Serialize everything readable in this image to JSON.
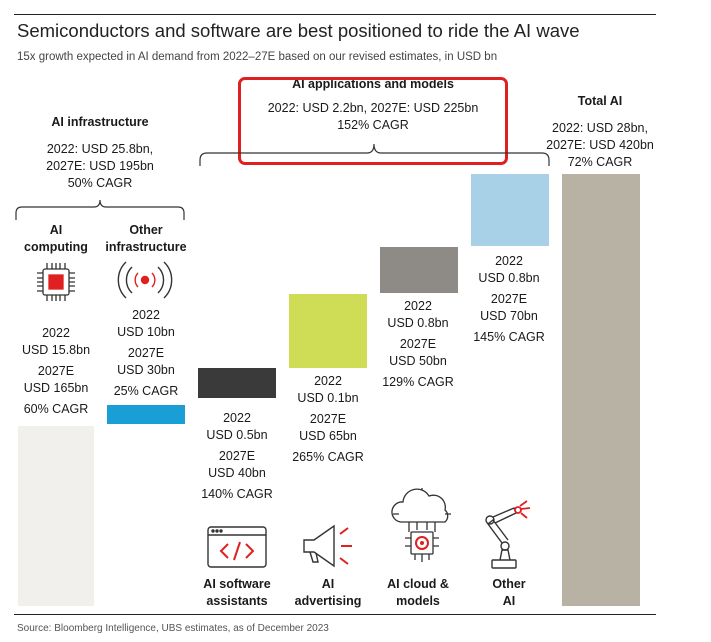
{
  "title": "Semiconductors and software are best positioned to ride the AI wave",
  "subtitle": "15x growth expected in AI demand from 2022–27E based on our revised estimates, in USD bn",
  "source": "Source: Bloomberg Intelligence, UBS estimates, as of December 2023",
  "groups": {
    "infrastructure": {
      "title": "AI infrastructure",
      "line1": "2022: USD 25.8bn,",
      "line2": "2027E: USD 195bn",
      "line3": "50% CAGR"
    },
    "applications": {
      "title": "AI applications and models",
      "line1": "2022: USD 2.2bn, 2027E: USD 225bn",
      "line2": "152% CAGR"
    },
    "total": {
      "title": "Total AI",
      "line1": "2022: USD 28bn,",
      "line2": "2027E: USD 420bn",
      "line3": "72% CAGR"
    }
  },
  "chart_data": {
    "type": "bar",
    "unit": "USD bn",
    "categories": [
      "AI computing",
      "Other infrastructure",
      "AI software assistants",
      "AI advertising",
      "AI cloud & models",
      "Other AI",
      "Total AI"
    ],
    "items": [
      {
        "id": "ai-computing",
        "label1": "AI",
        "label2": "computing",
        "value_2022": 15.8,
        "value_2027": 165,
        "cagr": 60,
        "text_2022": "2022",
        "text_2022_value": "USD 15.8bn",
        "text_2027": "2027E",
        "text_2027_value": "USD 165bn",
        "text_cagr": "60% CAGR",
        "color": "#f1f0ec",
        "icon": "chip-icon"
      },
      {
        "id": "other-infrastructure",
        "label1": "Other",
        "label2": "infrastructure",
        "value_2022": 10,
        "value_2027": 30,
        "cagr": 25,
        "text_2022": "2022",
        "text_2022_value": "USD 10bn",
        "text_2027": "2027E",
        "text_2027_value": "USD 30bn",
        "text_cagr": "25% CAGR",
        "color": "#1a9ed6",
        "icon": "wireless-signal-icon"
      },
      {
        "id": "ai-software-assistants",
        "label1": "AI software",
        "label2": "assistants",
        "value_2022": 0.5,
        "value_2027": 40,
        "cagr": 140,
        "text_2022": "2022",
        "text_2022_value": "USD 0.5bn",
        "text_2027": "2027E",
        "text_2027_value": "USD 40bn",
        "text_cagr": "140% CAGR",
        "color": "#3a3a3a",
        "icon": "code-window-icon"
      },
      {
        "id": "ai-advertising",
        "label1": "AI",
        "label2": "advertising",
        "value_2022": 0.1,
        "value_2027": 65,
        "cagr": 265,
        "text_2022": "2022",
        "text_2022_value": "USD 0.1bn",
        "text_2027": "2027E",
        "text_2027_value": "USD 65bn",
        "text_cagr": "265% CAGR",
        "color": "#cfdc55",
        "icon": "megaphone-icon"
      },
      {
        "id": "ai-cloud-models",
        "label1": "AI cloud &",
        "label2": "models",
        "value_2022": 0.8,
        "value_2027": 50,
        "cagr": 129,
        "text_2022": "2022",
        "text_2022_value": "USD 0.8bn",
        "text_2027": "2027E",
        "text_2027_value": "USD 50bn",
        "text_cagr": "129% CAGR",
        "color": "#8e8b86",
        "icon": "cloud-chip-icon"
      },
      {
        "id": "other-ai",
        "label1": "Other",
        "label2": "AI",
        "value_2022": 0.8,
        "value_2027": 70,
        "cagr": 145,
        "text_2022": "2022",
        "text_2022_value": "USD 0.8bn",
        "text_2027": "2027E",
        "text_2027_value": "USD 70bn",
        "text_cagr": "145% CAGR",
        "color": "#a8d0e6",
        "icon": "robot-arm-icon"
      },
      {
        "id": "total-ai",
        "value_2022": 28,
        "value_2027": 420,
        "cagr": 72,
        "color": "#b8b2a4"
      }
    ]
  },
  "colors": {
    "highlight": "#e02020",
    "accent_red": "#e02020"
  }
}
